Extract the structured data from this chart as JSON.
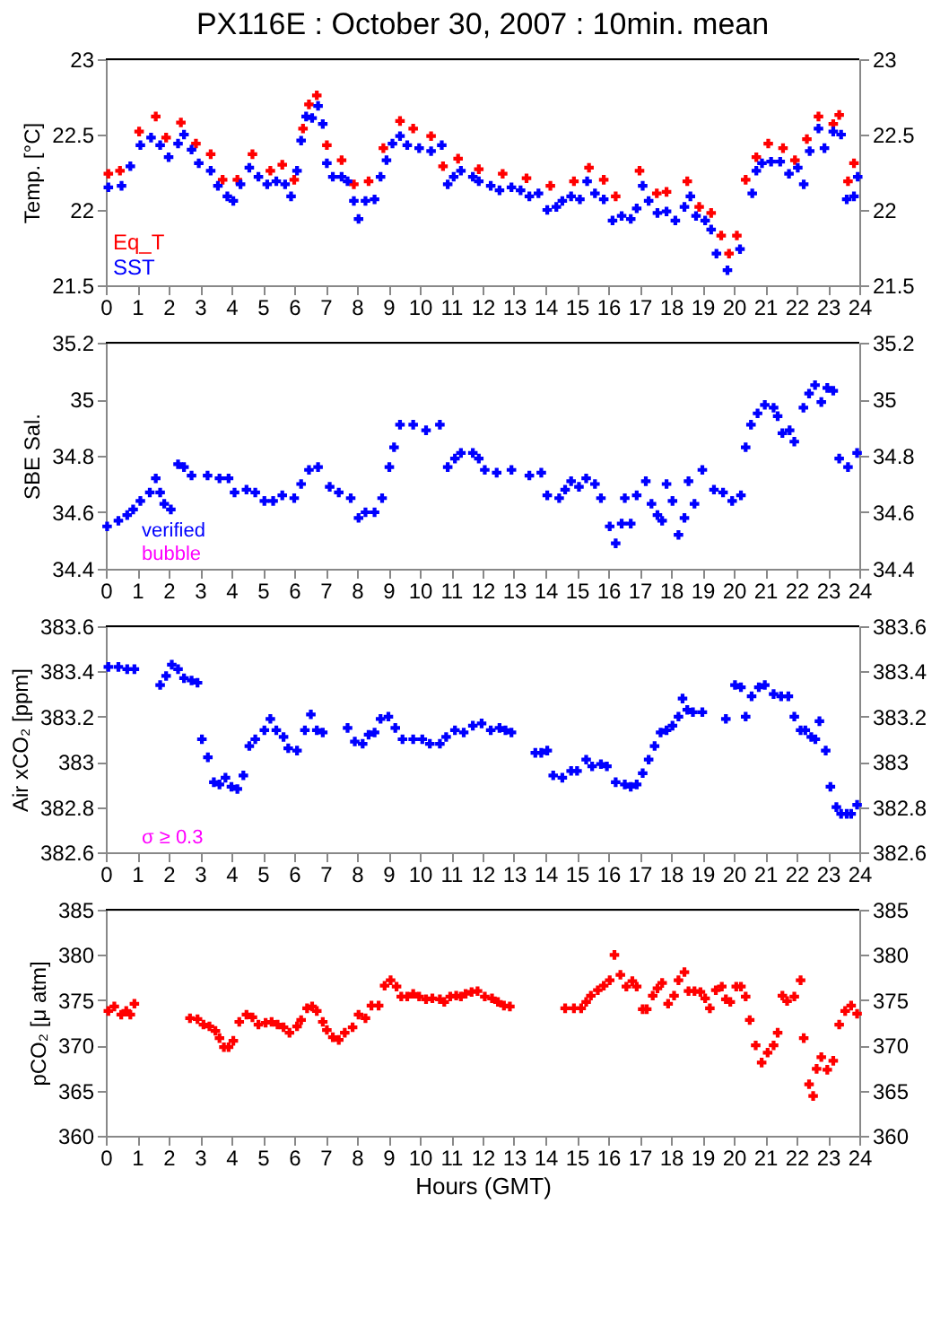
{
  "chart_data": [
    {
      "type": "scatter",
      "title": "PX116E : October 30, 2007 : 10min. mean",
      "ylabel": "Temp. [°C]",
      "marker": "cross",
      "legend": "bottom left",
      "grid": false,
      "xlim": [
        0,
        24
      ],
      "xticks": [
        0,
        1,
        2,
        3,
        4,
        5,
        6,
        7,
        8,
        9,
        10,
        11,
        12,
        13,
        14,
        15,
        16,
        17,
        18,
        19,
        20,
        21,
        22,
        23,
        24
      ],
      "ylim": [
        21.5,
        23
      ],
      "yticks": [
        21.5,
        22,
        22.5,
        23
      ],
      "y2lim": [
        21.5,
        23
      ],
      "y2ticks": [
        21.5,
        22,
        22.5,
        23
      ],
      "series": [
        {
          "name": "Eq_T",
          "color": "#ff0000",
          "x": [
            0.08,
            0.45,
            1.06,
            1.59,
            1.92,
            2.39,
            2.87,
            3.34,
            3.72,
            4.19,
            4.67,
            5.24,
            5.62,
            6.0,
            6.28,
            6.47,
            6.72,
            7.04,
            7.51,
            7.9,
            8.37,
            8.84,
            9.37,
            9.79,
            10.36,
            10.74,
            11.22,
            11.88,
            12.64,
            13.4,
            14.16,
            14.91,
            15.39,
            15.86,
            16.24,
            17.0,
            17.55,
            17.86,
            18.52,
            18.9,
            19.28,
            19.6,
            19.85,
            20.1,
            20.38,
            20.72,
            21.1,
            21.57,
            21.95,
            22.33,
            22.7,
            23.17,
            23.36,
            23.64,
            23.83
          ],
          "values": [
            22.24,
            22.26,
            22.52,
            22.62,
            22.48,
            22.58,
            22.44,
            22.37,
            22.2,
            22.2,
            22.37,
            22.26,
            22.3,
            22.2,
            22.54,
            22.7,
            22.76,
            22.43,
            22.33,
            22.17,
            22.19,
            22.41,
            22.59,
            22.54,
            22.49,
            22.29,
            22.34,
            22.27,
            22.24,
            22.21,
            22.16,
            22.19,
            22.28,
            22.2,
            22.09,
            22.26,
            22.11,
            22.12,
            22.19,
            22.02,
            21.98,
            21.83,
            21.71,
            21.83,
            22.2,
            22.35,
            22.44,
            22.41,
            22.33,
            22.47,
            22.62,
            22.57,
            22.63,
            22.19,
            22.31
          ]
        },
        {
          "name": "SST",
          "color": "#0000ff",
          "x": [
            0.08,
            0.5,
            0.78,
            1.1,
            1.44,
            1.73,
            2.0,
            2.3,
            2.49,
            2.73,
            2.96,
            3.34,
            3.57,
            3.87,
            4.06,
            4.29,
            4.57,
            4.86,
            5.14,
            5.43,
            5.71,
            5.9,
            6.09,
            6.22,
            6.38,
            6.57,
            6.76,
            6.91,
            7.04,
            7.23,
            7.51,
            7.7,
            7.9,
            8.05,
            8.27,
            8.56,
            8.75,
            8.94,
            9.13,
            9.37,
            9.6,
            9.98,
            10.36,
            10.7,
            10.89,
            11.08,
            11.31,
            11.69,
            11.88,
            12.26,
            12.54,
            12.92,
            13.21,
            13.49,
            13.78,
            14.06,
            14.35,
            14.54,
            14.82,
            15.1,
            15.33,
            15.58,
            15.86,
            16.14,
            16.43,
            16.72,
            16.91,
            17.1,
            17.29,
            17.57,
            17.86,
            18.14,
            18.43,
            18.62,
            18.8,
            19.09,
            19.28,
            19.45,
            19.8,
            20.2,
            20.59,
            20.72,
            20.9,
            21.19,
            21.48,
            21.76,
            22.04,
            22.23,
            22.42,
            22.7,
            22.89,
            23.17,
            23.42,
            23.6,
            23.83,
            23.95
          ],
          "values": [
            22.15,
            22.16,
            22.29,
            22.43,
            22.48,
            22.43,
            22.35,
            22.44,
            22.5,
            22.4,
            22.31,
            22.26,
            22.16,
            22.09,
            22.06,
            22.17,
            22.28,
            22.22,
            22.17,
            22.19,
            22.17,
            22.09,
            22.26,
            22.46,
            22.62,
            22.61,
            22.69,
            22.57,
            22.31,
            22.22,
            22.22,
            22.19,
            22.06,
            21.94,
            22.06,
            22.07,
            22.22,
            22.33,
            22.44,
            22.49,
            22.43,
            22.41,
            22.39,
            22.43,
            22.17,
            22.22,
            22.26,
            22.22,
            22.19,
            22.16,
            22.13,
            22.15,
            22.13,
            22.09,
            22.11,
            22.0,
            22.02,
            22.06,
            22.09,
            22.07,
            22.19,
            22.11,
            22.07,
            21.93,
            21.96,
            21.94,
            22.01,
            22.16,
            22.06,
            21.98,
            21.99,
            21.93,
            22.02,
            22.09,
            21.96,
            21.93,
            21.87,
            21.71,
            21.6,
            21.74,
            22.11,
            22.26,
            22.31,
            22.32,
            22.32,
            22.24,
            22.28,
            22.17,
            22.39,
            22.54,
            22.41,
            22.52,
            22.5,
            22.07,
            22.09,
            22.22
          ]
        }
      ]
    },
    {
      "type": "scatter",
      "ylabel": "SBE Sal.",
      "marker": "cross",
      "grid": false,
      "annotations": [
        "verified",
        "bubble"
      ],
      "xlim": [
        0,
        24
      ],
      "xticks": [
        0,
        1,
        2,
        3,
        4,
        5,
        6,
        7,
        8,
        9,
        10,
        11,
        12,
        13,
        14,
        15,
        16,
        17,
        18,
        19,
        20,
        21,
        22,
        23,
        24
      ],
      "ylim": [
        34.4,
        35.2
      ],
      "yticks": [
        34.4,
        34.6,
        34.8,
        35,
        35.2
      ],
      "y2lim": [
        34.4,
        35.2
      ],
      "y2ticks": [
        34.4,
        34.6,
        34.8,
        35,
        35.2
      ],
      "series": [
        {
          "color": "#0000ff",
          "x": [
            0.04,
            0.4,
            0.68,
            0.87,
            1.1,
            1.4,
            1.59,
            1.73,
            1.86,
            2.07,
            2.3,
            2.49,
            2.73,
            3.24,
            3.62,
            3.91,
            4.1,
            4.48,
            4.76,
            5.05,
            5.33,
            5.62,
            6.0,
            6.22,
            6.47,
            6.76,
            7.13,
            7.42,
            7.8,
            8.05,
            8.27,
            8.56,
            8.8,
            9.03,
            9.18,
            9.37,
            9.79,
            10.2,
            10.64,
            10.89,
            11.12,
            11.31,
            11.69,
            11.88,
            12.07,
            12.45,
            12.92,
            13.49,
            13.87,
            14.06,
            14.44,
            14.63,
            14.82,
            15.07,
            15.3,
            15.58,
            15.77,
            16.05,
            16.24,
            16.43,
            16.53,
            16.72,
            16.91,
            17.2,
            17.38,
            17.57,
            17.72,
            17.86,
            18.05,
            18.24,
            18.43,
            18.56,
            18.75,
            19.0,
            19.37,
            19.66,
            19.95,
            20.23,
            20.38,
            20.55,
            20.76,
            20.99,
            21.27,
            21.4,
            21.55,
            21.78,
            21.93,
            22.22,
            22.4,
            22.59,
            22.79,
            22.98,
            23.17,
            23.36,
            23.64,
            23.93
          ],
          "values": [
            34.55,
            34.57,
            34.59,
            34.61,
            34.64,
            34.67,
            34.72,
            34.67,
            34.63,
            34.61,
            34.77,
            34.76,
            34.73,
            34.73,
            34.72,
            34.72,
            34.67,
            34.68,
            34.67,
            34.64,
            34.64,
            34.66,
            34.65,
            34.7,
            34.75,
            34.76,
            34.69,
            34.67,
            34.65,
            34.58,
            34.6,
            34.6,
            34.65,
            34.76,
            34.83,
            34.91,
            34.91,
            34.89,
            34.91,
            34.76,
            34.79,
            34.81,
            34.81,
            34.79,
            34.75,
            34.74,
            34.75,
            34.73,
            34.74,
            34.66,
            34.65,
            34.68,
            34.71,
            34.69,
            34.72,
            34.7,
            34.65,
            34.55,
            34.49,
            34.56,
            34.65,
            34.56,
            34.66,
            34.71,
            34.63,
            34.59,
            34.57,
            34.7,
            34.64,
            34.52,
            34.58,
            34.71,
            34.63,
            34.75,
            34.68,
            34.67,
            34.64,
            34.66,
            34.83,
            34.91,
            34.95,
            34.98,
            34.97,
            34.94,
            34.88,
            34.89,
            34.85,
            34.97,
            35.02,
            35.05,
            34.99,
            35.04,
            35.03,
            34.79,
            34.76,
            34.81
          ]
        }
      ]
    },
    {
      "type": "scatter",
      "ylabel": "Air xCO₂ [ppm]",
      "marker": "cross",
      "grid": false,
      "annotations": [
        "σ ≥ 0.3"
      ],
      "xlim": [
        0,
        24
      ],
      "xticks": [
        0,
        1,
        2,
        3,
        4,
        5,
        6,
        7,
        8,
        9,
        10,
        11,
        12,
        13,
        14,
        15,
        16,
        17,
        18,
        19,
        20,
        21,
        22,
        23,
        24
      ],
      "ylim": [
        382.6,
        383.6
      ],
      "yticks": [
        382.6,
        382.8,
        383,
        383.2,
        383.4,
        383.6
      ],
      "y2lim": [
        382.6,
        383.6
      ],
      "y2ticks": [
        382.6,
        382.8,
        383,
        383.2,
        383.4,
        383.6
      ],
      "series": [
        {
          "color": "#0000ff",
          "x": [
            0.08,
            0.4,
            0.68,
            0.91,
            1.73,
            1.92,
            2.1,
            2.3,
            2.49,
            2.73,
            2.92,
            3.06,
            3.25,
            3.44,
            3.62,
            3.81,
            4.0,
            4.19,
            4.38,
            4.57,
            4.76,
            5.05,
            5.24,
            5.43,
            5.66,
            5.81,
            6.09,
            6.34,
            6.53,
            6.72,
            6.91,
            7.7,
            7.93,
            8.18,
            8.37,
            8.56,
            8.75,
            9.0,
            9.22,
            9.45,
            9.79,
            10.08,
            10.32,
            10.64,
            10.84,
            11.12,
            11.4,
            11.69,
            11.97,
            12.26,
            12.54,
            12.73,
            12.92,
            13.68,
            13.87,
            14.06,
            14.25,
            14.54,
            14.82,
            15.01,
            15.3,
            15.49,
            15.77,
            15.96,
            16.24,
            16.53,
            16.72,
            16.91,
            17.1,
            17.29,
            17.48,
            17.67,
            17.86,
            18.05,
            18.24,
            18.37,
            18.52,
            18.7,
            19.0,
            19.75,
            20.04,
            20.23,
            20.38,
            20.57,
            20.8,
            20.99,
            21.27,
            21.51,
            21.74,
            21.93,
            22.13,
            22.28,
            22.47,
            22.6,
            22.73,
            22.93,
            23.08,
            23.27,
            23.42,
            23.6,
            23.74,
            23.93
          ],
          "values": [
            383.42,
            383.42,
            383.41,
            383.41,
            383.34,
            383.38,
            383.43,
            383.41,
            383.37,
            383.36,
            383.35,
            383.1,
            383.02,
            382.91,
            382.9,
            382.93,
            382.89,
            382.88,
            382.94,
            383.07,
            383.1,
            383.14,
            383.19,
            383.14,
            383.11,
            383.06,
            383.05,
            383.14,
            383.21,
            383.14,
            383.13,
            383.15,
            383.09,
            383.08,
            383.12,
            383.13,
            383.19,
            383.2,
            383.15,
            383.1,
            383.1,
            383.1,
            383.08,
            383.08,
            383.11,
            383.14,
            383.13,
            383.16,
            383.17,
            383.14,
            383.15,
            383.14,
            383.13,
            383.04,
            383.04,
            383.05,
            382.94,
            382.93,
            382.96,
            382.96,
            383.01,
            382.98,
            382.99,
            382.98,
            382.91,
            382.9,
            382.89,
            382.9,
            382.95,
            383.01,
            383.07,
            383.13,
            383.14,
            383.16,
            383.2,
            383.28,
            383.23,
            383.22,
            383.22,
            383.19,
            383.34,
            383.33,
            383.2,
            383.29,
            383.33,
            383.34,
            383.3,
            383.29,
            383.29,
            383.2,
            383.14,
            383.14,
            383.11,
            383.1,
            383.18,
            383.05,
            382.89,
            382.8,
            382.77,
            382.77,
            382.77,
            382.81
          ]
        }
      ]
    },
    {
      "type": "scatter",
      "ylabel": "pCO₂ [μ atm]",
      "xlabel": "Hours (GMT)",
      "marker": "cross",
      "grid": false,
      "xlim": [
        0,
        24
      ],
      "xticks": [
        0,
        1,
        2,
        3,
        4,
        5,
        6,
        7,
        8,
        9,
        10,
        11,
        12,
        13,
        14,
        15,
        16,
        17,
        18,
        19,
        20,
        21,
        22,
        23,
        24
      ],
      "ylim": [
        360,
        385
      ],
      "yticks": [
        360,
        365,
        370,
        375,
        380,
        385
      ],
      "y2lim": [
        360,
        385
      ],
      "y2ticks": [
        360,
        365,
        370,
        375,
        380,
        385
      ],
      "series": [
        {
          "color": "#ff0000",
          "x": [
            0.08,
            0.27,
            0.49,
            0.65,
            0.78,
            0.91,
            2.68,
            2.92,
            3.11,
            3.3,
            3.49,
            3.62,
            3.76,
            3.91,
            4.06,
            4.25,
            4.48,
            4.67,
            4.86,
            5.09,
            5.28,
            5.47,
            5.66,
            5.85,
            6.09,
            6.22,
            6.41,
            6.57,
            6.72,
            6.91,
            7.04,
            7.23,
            7.42,
            7.61,
            7.86,
            8.05,
            8.27,
            8.46,
            8.69,
            8.88,
            9.07,
            9.26,
            9.41,
            9.6,
            9.79,
            9.98,
            10.2,
            10.4,
            10.64,
            10.78,
            10.97,
            11.16,
            11.31,
            11.46,
            11.65,
            11.84,
            12.07,
            12.3,
            12.49,
            12.68,
            12.87,
            14.63,
            14.91,
            15.14,
            15.3,
            15.45,
            15.67,
            15.86,
            16.05,
            16.2,
            16.39,
            16.58,
            16.77,
            16.91,
            17.1,
            17.23,
            17.42,
            17.57,
            17.72,
            17.91,
            18.1,
            18.24,
            18.43,
            18.56,
            18.75,
            18.94,
            19.09,
            19.24,
            19.43,
            19.62,
            19.75,
            19.89,
            20.08,
            20.23,
            20.38,
            20.51,
            20.7,
            20.89,
            21.08,
            21.27,
            21.4,
            21.55,
            21.7,
            21.93,
            22.13,
            22.23,
            22.4,
            22.53,
            22.64,
            22.79,
            22.98,
            23.17,
            23.36,
            23.55,
            23.74,
            23.93
          ],
          "values": [
            373.8,
            374.3,
            373.4,
            373.8,
            373.4,
            374.6,
            373.0,
            372.9,
            372.3,
            372.1,
            371.6,
            370.8,
            369.8,
            369.8,
            370.5,
            372.6,
            373.4,
            373.1,
            372.3,
            372.5,
            372.6,
            372.3,
            372.0,
            371.4,
            372.1,
            372.8,
            374.1,
            374.3,
            373.8,
            372.6,
            371.7,
            370.9,
            370.6,
            371.4,
            372.0,
            373.4,
            373.0,
            374.4,
            374.4,
            376.6,
            377.2,
            376.5,
            375.4,
            375.4,
            375.7,
            375.4,
            375.1,
            375.2,
            375.1,
            374.8,
            375.4,
            375.5,
            375.4,
            375.7,
            375.9,
            376.0,
            375.4,
            375.2,
            374.8,
            374.4,
            374.3,
            374.1,
            374.1,
            374.1,
            374.8,
            375.5,
            376.1,
            376.6,
            377.2,
            380.0,
            377.8,
            376.5,
            377.1,
            376.5,
            374.0,
            374.0,
            375.5,
            376.3,
            376.9,
            374.6,
            375.5,
            377.2,
            378.1,
            376.0,
            376.0,
            375.9,
            375.2,
            374.1,
            376.1,
            376.5,
            375.1,
            374.8,
            376.5,
            376.5,
            375.4,
            372.8,
            370.0,
            368.1,
            369.2,
            370.0,
            371.4,
            375.5,
            374.9,
            375.4,
            377.2,
            370.8,
            365.7,
            364.4,
            367.4,
            368.7,
            367.3,
            368.3,
            372.3,
            373.8,
            374.4,
            373.5
          ]
        }
      ]
    }
  ]
}
